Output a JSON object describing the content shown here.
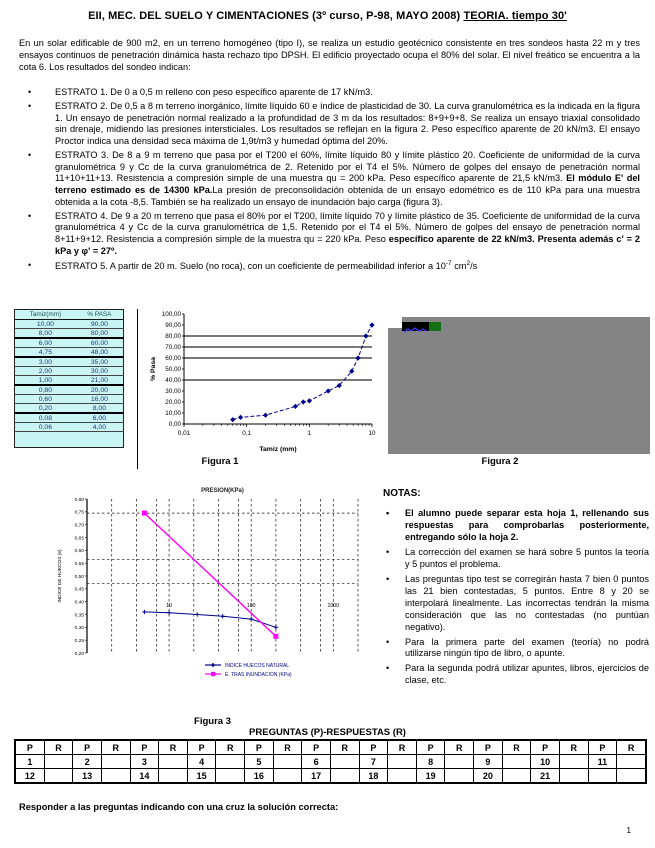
{
  "header": {
    "title_segments": [
      {
        "text": "EII, MEC. DEL SUELO  Y CIMENTACIONES (3º curso, P-98, MAYO 2008)  "
      },
      {
        "text": "TEORIA. tiempo 30'",
        "underline": true
      }
    ]
  },
  "intro": "En un solar edificable de 900 m2, en un terreno homogéneo (tipo I), se realiza un estudio geotécnico consistente en tres sondeos hasta 22 m y tres ensayos continuos de penetración dinámica hasta rechazo tipo DPSH. El edificio proyectado ocupa el 80% del solar. El nivel freático se encuentra a la cota 6. Los resultados del sondeo indican:",
  "estratos": [
    {
      "segments": [
        {
          "text": "ESTRATO 1. De 0 a 0,5 m relleno con peso específico aparente de 17 kN/m3."
        }
      ]
    },
    {
      "segments": [
        {
          "text": "ESTRATO 2. De 0,5 a 8 m terreno inorgánico, límite líquido 60 e índice de plasticidad de 30. La curva granulométrica es la indicada en la figura 1. Un ensayo de penetración normal realizado a la profundidad de 3 m da los resultados: 8+9+9+8. Se realiza un ensayo triaxial consolidado sin drenaje, midiendo las presiones intersticiales. Los resultados se reflejan en la figura 2. Peso específico aparente de 20 kN/m3. El ensayo Proctor indica una densidad seca máxima de 1,9t/m3 y humedad óptima del 20%."
        }
      ]
    },
    {
      "segments": [
        {
          "text": "ESTRATO 3. De 8 a 9 m terreno que pasa por el T200 el 60%, límite líquido 80 y límite plástico 20. Coeficiente de uniformidad de la curva granulométrica 9 y Cc de la curva granulométrica de 2.  Retenido por el T4 el 5%. Número de golpes del ensayo de penetración normal 11+10+11+13. Resistencia a compresión simple de una muestra qu = 200 kPa. Peso específico aparente de 21,5 kN/m3.  "
        },
        {
          "text": "El módulo E' del terreno estimado es de 14300 kPa.",
          "bold": true
        },
        {
          "text": "La presión de preconsolidación obtenida de un ensayo edométrico es de 110 kPa para una muestra obtenida a la cota -8,5. También se ha realizado un ensayo de inundación bajo carga (figura 3)."
        }
      ]
    },
    {
      "segments": [
        {
          "text": "ESTRATO 4. De 9  a 20 m terreno que pasa el 80% por el T200, límite líquido 70 y límite plástico de 35. Coeficiente de uniformidad de la curva granulométrica 4 y Cc de la curva granulométrica de 1,5. Retenido por el T4 el 5%. Número de golpes del ensayo de penetración normal 8+11+9+12. Resistencia a compresión simple de la muestra   qu = 220 kPa. Peso "
        },
        {
          "text": "específico aparente de 22 kN/m3. Presenta además c' = 2 kPa y φ' = 27º.",
          "bold": true
        }
      ]
    },
    {
      "segments": [
        {
          "text": "ESTRATO 5.  A partir de 20 m. Suelo (no roca), con un coeficiente de permeabilidad inferior a 10"
        },
        {
          "text": "-7",
          "sup": true
        },
        {
          "text": " cm"
        },
        {
          "text": "2",
          "sup": true
        },
        {
          "text": "/s"
        }
      ]
    }
  ],
  "sieve_table": {
    "headers": [
      "Tamiz(mm)",
      "% PASA"
    ],
    "rows": [
      {
        "cells": [
          "10,00",
          "90,00"
        ]
      },
      {
        "cells": [
          "8,00",
          "80,00"
        ],
        "sep": true
      },
      {
        "cells": [
          "6,00",
          "60,00"
        ]
      },
      {
        "cells": [
          "4,75",
          "48,00"
        ],
        "sep": true
      },
      {
        "cells": [
          "3,00",
          "35,00"
        ]
      },
      {
        "cells": [
          "2,00",
          "30,00"
        ]
      },
      {
        "cells": [
          "1,00",
          "21,00"
        ],
        "sep": true
      },
      {
        "cells": [
          "0,80",
          "20,00"
        ]
      },
      {
        "cells": [
          "0,60",
          "16,00"
        ]
      },
      {
        "cells": [
          "0,20",
          "8,00"
        ],
        "sep": true
      },
      {
        "cells": [
          "0,08",
          "6,00"
        ]
      },
      {
        "cells": [
          "0,06",
          "4,00"
        ]
      }
    ]
  },
  "chart_data": [
    {
      "id": "fig1",
      "type": "line",
      "title": "",
      "xlabel": "Tamiz (mm)",
      "ylabel": "% Pasa",
      "x_scale": "log",
      "xlim": [
        0.01,
        10
      ],
      "x_tick_values": [
        0.01,
        0.1,
        1,
        10
      ],
      "x_ticks": [
        "0,01",
        "0,1",
        "1",
        "10"
      ],
      "ylim": [
        0,
        100
      ],
      "y_tick_step": 10,
      "h_gridlines": [
        40,
        60,
        70,
        80
      ],
      "legend": null,
      "series": [
        {
          "name": "curva granulometrica",
          "color": "#00008b",
          "marker": "diamond",
          "points": [
            [
              0.06,
              4
            ],
            [
              0.08,
              6
            ],
            [
              0.2,
              8
            ],
            [
              0.6,
              16
            ],
            [
              0.8,
              20
            ],
            [
              1,
              21
            ],
            [
              2,
              30
            ],
            [
              3,
              35
            ],
            [
              4.75,
              48
            ],
            [
              6,
              60
            ],
            [
              8,
              80
            ],
            [
              10,
              90
            ]
          ]
        }
      ]
    },
    {
      "id": "fig3",
      "type": "line",
      "title": "PRESION(KPa)",
      "xlabel": "",
      "ylabel": "INDICE DE HUECOS (e)",
      "x_scale": "log",
      "xlim": [
        1,
        2000
      ],
      "x_tick_values": [
        10,
        100,
        1000
      ],
      "x_ticks": [
        "10",
        "100",
        "1000"
      ],
      "ylim": [
        0.2,
        0.8
      ],
      "y_tick_step": 0.05,
      "h_gridlines": [
        0.745,
        0.565,
        0.47
      ],
      "legend_position": "bottom-right",
      "series": [
        {
          "name": "INDICE HUECOS NATURAL",
          "color": "#00008b",
          "marker": "plus",
          "points": [
            [
              5,
              0.36
            ],
            [
              10,
              0.357
            ],
            [
              22,
              0.35
            ],
            [
              45,
              0.343
            ],
            [
              100,
              0.332
            ],
            [
              200,
              0.3
            ]
          ]
        },
        {
          "name": "E. TRAS INUNDACION (KPa)",
          "color": "#ff00ff",
          "marker": "square",
          "points": [
            [
              5,
              0.745
            ],
            [
              200,
              0.265
            ]
          ]
        }
      ]
    }
  ],
  "figures": {
    "fig1_caption": "Figura 1",
    "fig2_caption": "Figura 2",
    "fig3_caption": "Figura 3",
    "fig2_colors": {
      "bg": "#848484",
      "notch": "#ffffff",
      "chip_black": "#000000",
      "chip_green": "#157015",
      "scribble": "#3a3aff"
    }
  },
  "notas": {
    "title": "NOTAS:",
    "items": [
      {
        "text": "El alumno puede separar esta hoja 1, rellenando sus respuestas para comprobarlas posteriormente, entregando sólo la hoja 2.",
        "bold": true
      },
      {
        "text": "La corrección del examen se hará sobre 5 puntos la teoría y 5 puntos el problema.",
        "bold": false
      },
      {
        "text": "Las preguntas tipo test se corregirán hasta 7 bien 0 puntos las 21 bien contestadas, 5 puntos. Entre 8 y 20 se interpolará linealmente. Las incorrectas tendrán la misma consideración que las no contestadas (no puntúan negativo).",
        "bold": false
      },
      {
        "text": "Para la primera parte del examen (teoría) no podrá utilizarse ningún tipo de libro, o apunte.",
        "bold": false
      },
      {
        "text": "Para la segunda podrá utilizar apuntes, libros, ejercicios de clase, etc.",
        "bold": false
      }
    ]
  },
  "pr_table": {
    "title": "PREGUNTAS (P)-RESPUESTAS (R)",
    "header": [
      "P",
      "R",
      "P",
      "R",
      "P",
      "R",
      "P",
      "R",
      "P",
      "R",
      "P",
      "R",
      "P",
      "R",
      "P",
      "R",
      "P",
      "R",
      "P",
      "R",
      "P",
      "R"
    ],
    "rows": [
      [
        "1",
        "",
        "2",
        "",
        "3",
        "",
        "4",
        "",
        "5",
        "",
        "6",
        "",
        "7",
        "",
        "8",
        "",
        "9",
        "",
        "10",
        "",
        "11",
        ""
      ],
      [
        "12",
        "",
        "13",
        "",
        "14",
        "",
        "15",
        "",
        "16",
        "",
        "17",
        "",
        "18",
        "",
        "19",
        "",
        "20",
        "",
        "21",
        "",
        "",
        ""
      ]
    ]
  },
  "footer": {
    "instruction": "Responder a las preguntas indicando con una cruz la solución correcta:",
    "page_number": "1"
  }
}
